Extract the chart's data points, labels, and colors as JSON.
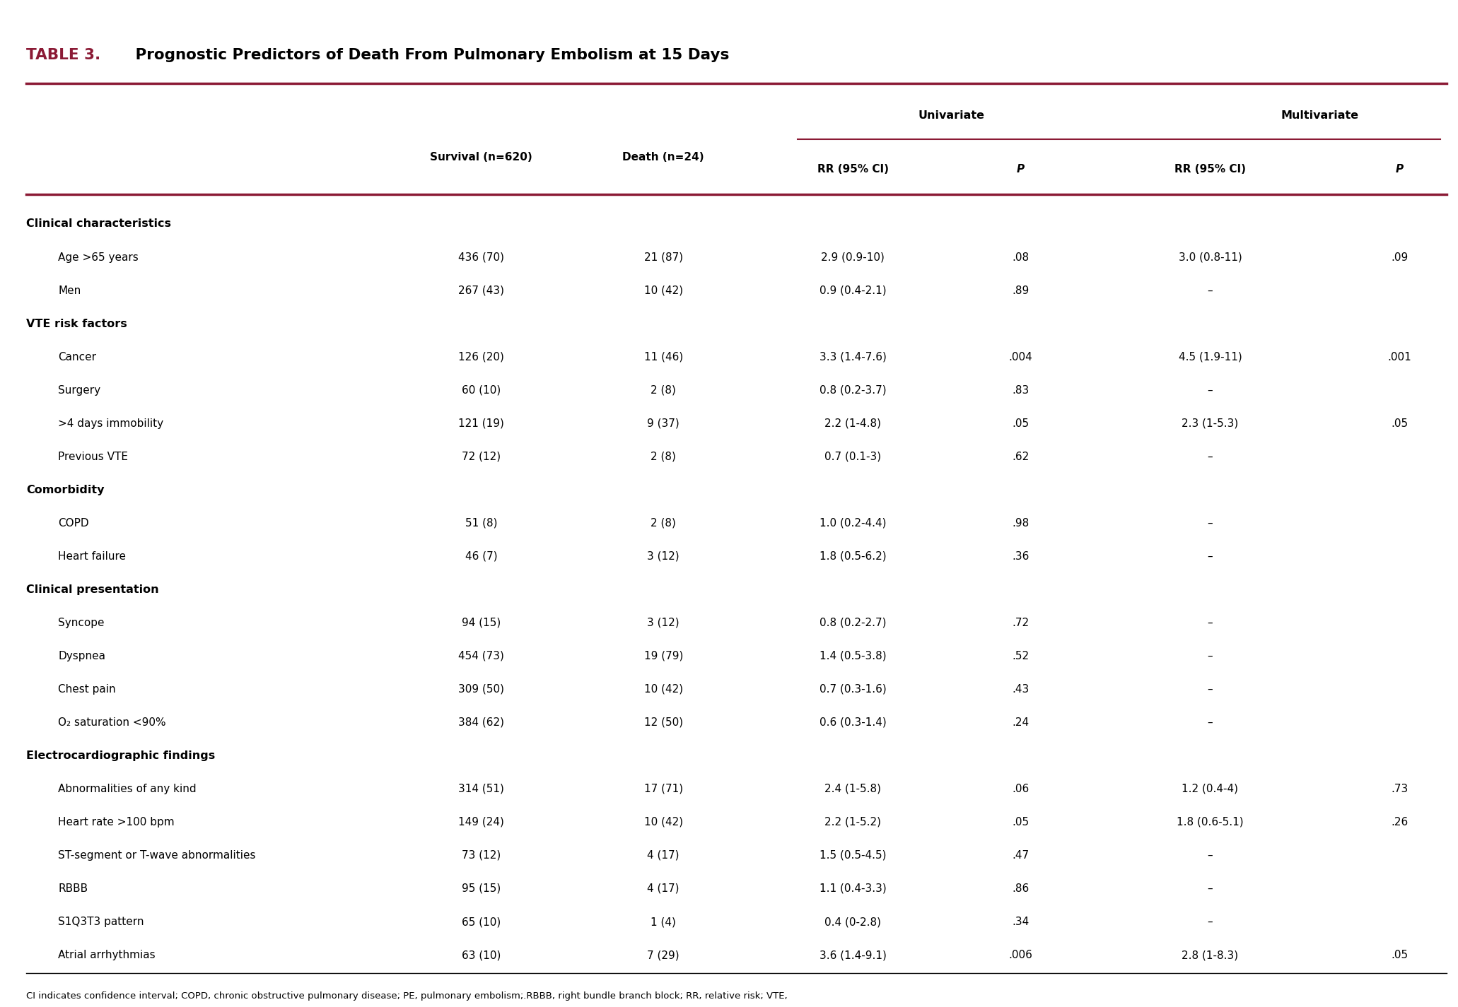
{
  "title_prefix": "TABLE 3.",
  "title_text": " Prognostic Predictors of Death From Pulmonary Embolism at 15 Days",
  "title_prefix_color": "#8B1A35",
  "title_text_color": "#000000",
  "header_line_color": "#8B1A35",
  "footnote": "CI indicates confidence interval; COPD, chronic obstructive pulmonary disease; PE, pulmonary embolism;.RBBB, right bundle branch block; RR, relative risk; VTE,\nvenous thromboembolism\nThe figures express n (%).",
  "rows": [
    {
      "label": "Clinical characteristics",
      "indent": 0,
      "bold": true,
      "survival": "",
      "death": "",
      "uni_rr": "",
      "uni_p": "",
      "multi_rr": "",
      "multi_p": ""
    },
    {
      "label": "Age >65 years",
      "indent": 1,
      "bold": false,
      "survival": "436 (70)",
      "death": "21 (87)",
      "uni_rr": "2.9 (0.9-10)",
      "uni_p": ".08",
      "multi_rr": "3.0 (0.8-11)",
      "multi_p": ".09"
    },
    {
      "label": "Men",
      "indent": 1,
      "bold": false,
      "survival": "267 (43)",
      "death": "10 (42)",
      "uni_rr": "0.9 (0.4-2.1)",
      "uni_p": ".89",
      "multi_rr": "–",
      "multi_p": ""
    },
    {
      "label": "VTE risk factors",
      "indent": 0,
      "bold": true,
      "survival": "",
      "death": "",
      "uni_rr": "",
      "uni_p": "",
      "multi_rr": "",
      "multi_p": ""
    },
    {
      "label": "Cancer",
      "indent": 1,
      "bold": false,
      "survival": "126 (20)",
      "death": "11 (46)",
      "uni_rr": "3.3 (1.4-7.6)",
      "uni_p": ".004",
      "multi_rr": "4.5 (1.9-11)",
      "multi_p": ".001"
    },
    {
      "label": "Surgery",
      "indent": 1,
      "bold": false,
      "survival": "60 (10)",
      "death": "2 (8)",
      "uni_rr": "0.8 (0.2-3.7)",
      "uni_p": ".83",
      "multi_rr": "–",
      "multi_p": ""
    },
    {
      "label": ">4 days immobility",
      "indent": 1,
      "bold": false,
      "survival": "121 (19)",
      "death": "9 (37)",
      "uni_rr": "2.2 (1-4.8)",
      "uni_p": ".05",
      "multi_rr": "2.3 (1-5.3)",
      "multi_p": ".05"
    },
    {
      "label": "Previous VTE",
      "indent": 1,
      "bold": false,
      "survival": "72 (12)",
      "death": "2 (8)",
      "uni_rr": "0.7 (0.1-3)",
      "uni_p": ".62",
      "multi_rr": "–",
      "multi_p": ""
    },
    {
      "label": "Comorbidity",
      "indent": 0,
      "bold": true,
      "survival": "",
      "death": "",
      "uni_rr": "",
      "uni_p": "",
      "multi_rr": "",
      "multi_p": ""
    },
    {
      "label": "COPD",
      "indent": 1,
      "bold": false,
      "survival": "51 (8)",
      "death": "2 (8)",
      "uni_rr": "1.0 (0.2-4.4)",
      "uni_p": ".98",
      "multi_rr": "–",
      "multi_p": ""
    },
    {
      "label": "Heart failure",
      "indent": 1,
      "bold": false,
      "survival": "46 (7)",
      "death": "3 (12)",
      "uni_rr": "1.8 (0.5-6.2)",
      "uni_p": ".36",
      "multi_rr": "–",
      "multi_p": ""
    },
    {
      "label": "Clinical presentation",
      "indent": 0,
      "bold": true,
      "survival": "",
      "death": "",
      "uni_rr": "",
      "uni_p": "",
      "multi_rr": "",
      "multi_p": ""
    },
    {
      "label": "Syncope",
      "indent": 1,
      "bold": false,
      "survival": "94 (15)",
      "death": "3 (12)",
      "uni_rr": "0.8 (0.2-2.7)",
      "uni_p": ".72",
      "multi_rr": "–",
      "multi_p": ""
    },
    {
      "label": "Dyspnea",
      "indent": 1,
      "bold": false,
      "survival": "454 (73)",
      "death": "19 (79)",
      "uni_rr": "1.4 (0.5-3.8)",
      "uni_p": ".52",
      "multi_rr": "–",
      "multi_p": ""
    },
    {
      "label": "Chest pain",
      "indent": 1,
      "bold": false,
      "survival": "309 (50)",
      "death": "10 (42)",
      "uni_rr": "0.7 (0.3-1.6)",
      "uni_p": ".43",
      "multi_rr": "–",
      "multi_p": ""
    },
    {
      "label": "O₂ saturation <90%",
      "indent": 1,
      "bold": false,
      "survival": "384 (62)",
      "death": "12 (50)",
      "uni_rr": "0.6 (0.3-1.4)",
      "uni_p": ".24",
      "multi_rr": "–",
      "multi_p": ""
    },
    {
      "label": "Electrocardiographic findings",
      "indent": 0,
      "bold": true,
      "survival": "",
      "death": "",
      "uni_rr": "",
      "uni_p": "",
      "multi_rr": "",
      "multi_p": ""
    },
    {
      "label": "Abnormalities of any kind",
      "indent": 1,
      "bold": false,
      "survival": "314 (51)",
      "death": "17 (71)",
      "uni_rr": "2.4 (1-5.8)",
      "uni_p": ".06",
      "multi_rr": "1.2 (0.4-4)",
      "multi_p": ".73"
    },
    {
      "label": "Heart rate >100 bpm",
      "indent": 1,
      "bold": false,
      "survival": "149 (24)",
      "death": "10 (42)",
      "uni_rr": "2.2 (1-5.2)",
      "uni_p": ".05",
      "multi_rr": "1.8 (0.6-5.1)",
      "multi_p": ".26"
    },
    {
      "label": "ST-segment or T-wave abnormalities",
      "indent": 1,
      "bold": false,
      "survival": "73 (12)",
      "death": "4 (17)",
      "uni_rr": "1.5 (0.5-4.5)",
      "uni_p": ".47",
      "multi_rr": "–",
      "multi_p": ""
    },
    {
      "label": "RBBB",
      "indent": 1,
      "bold": false,
      "survival": "95 (15)",
      "death": "4 (17)",
      "uni_rr": "1.1 (0.4-3.3)",
      "uni_p": ".86",
      "multi_rr": "–",
      "multi_p": ""
    },
    {
      "label": "S1Q3T3 pattern",
      "indent": 1,
      "bold": false,
      "survival": "65 (10)",
      "death": "1 (4)",
      "uni_rr": "0.4 (0-2.8)",
      "uni_p": ".34",
      "multi_rr": "–",
      "multi_p": ""
    },
    {
      "label": "Atrial arrhythmias",
      "indent": 1,
      "bold": false,
      "survival": "63 (10)",
      "death": "7 (29)",
      "uni_rr": "3.6 (1.4-9.1)",
      "uni_p": ".006",
      "multi_rr": "2.8 (1-8.3)",
      "multi_p": ".05"
    }
  ],
  "background_color": "#ffffff",
  "line_color": "#8B1A35",
  "text_color": "#000000",
  "fig_width": 20.62,
  "fig_height": 14.25
}
